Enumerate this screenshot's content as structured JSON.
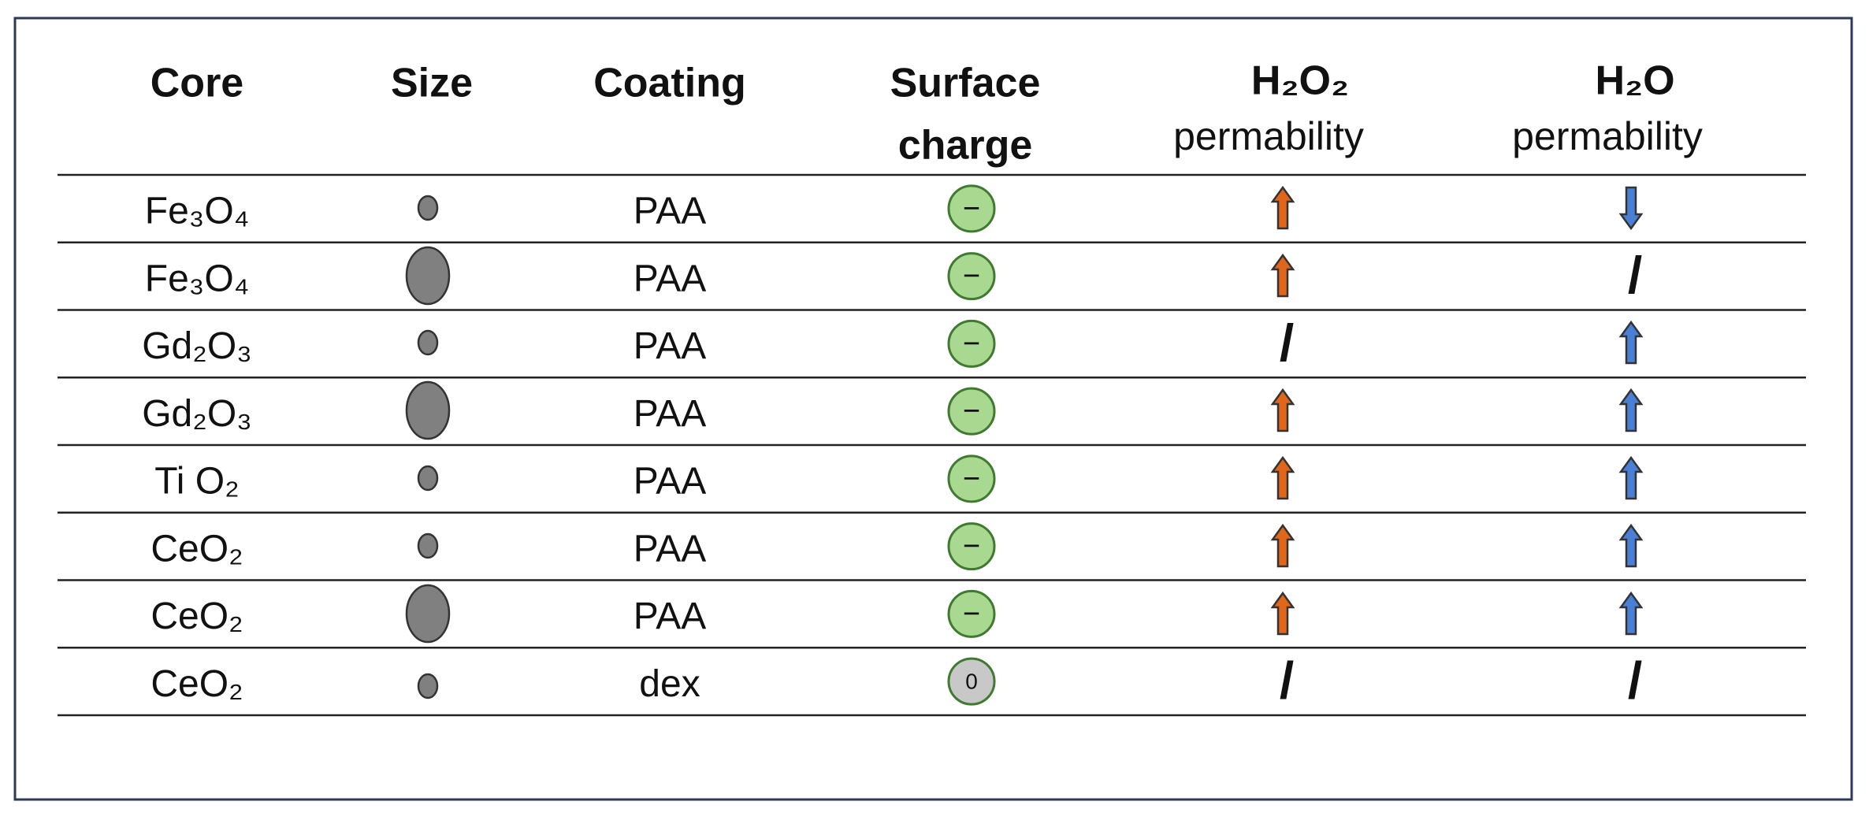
{
  "header": {
    "core": "Core",
    "size": "Size",
    "coating": "Coating",
    "surface_charge": [
      "Surface",
      "charge"
    ],
    "h2o2": [
      "H₂O₂",
      "permability"
    ],
    "h2o": [
      "H₂O",
      "permability"
    ]
  },
  "table": {
    "rows": [
      {
        "core": "Fe₃O₄",
        "coating": "PAA",
        "charge": "−"
      },
      {
        "core": "Fe₃O₄",
        "coating": "PAA",
        "charge": "−",
        "h2o": "/"
      },
      {
        "core": "Gd₂O₃",
        "coating": "PAA",
        "charge": "−",
        "h2o2": "/"
      },
      {
        "core": "Gd₂O₃",
        "coating": "PAA",
        "charge": "−"
      },
      {
        "core": "Ti O₂",
        "coating": "PAA",
        "charge": "−"
      },
      {
        "core": "CeO₂",
        "coating": "PAA",
        "charge": "−"
      },
      {
        "core": "CeO₂",
        "coating": "PAA",
        "charge": "−"
      },
      {
        "core": "CeO₂",
        "coating": "dex",
        "charge": "0",
        "h2o2": "/",
        "h2o": "/"
      }
    ]
  }
}
